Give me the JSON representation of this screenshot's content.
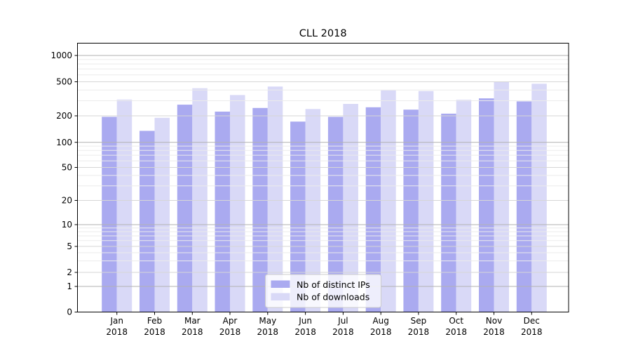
{
  "chart_data": {
    "type": "bar",
    "title": "CLL 2018",
    "categories": [
      "Jan 2018",
      "Feb 2018",
      "Mar 2018",
      "Apr 2018",
      "May 2018",
      "Jun 2018",
      "Jul 2018",
      "Aug 2018",
      "Sep 2018",
      "Oct 2018",
      "Nov 2018",
      "Dec 2018"
    ],
    "series": [
      {
        "name": "Nb of distinct IPs",
        "color": "#aaaaf0",
        "values": [
          195,
          135,
          270,
          224,
          247,
          172,
          195,
          252,
          236,
          212,
          320,
          295
        ]
      },
      {
        "name": "Nb of downloads",
        "color": "#d9d9f7",
        "values": [
          310,
          190,
          420,
          350,
          440,
          240,
          276,
          396,
          390,
          308,
          495,
          474
        ]
      }
    ],
    "xlabel": "",
    "ylabel": "",
    "yticks": [
      1000,
      500,
      200,
      100,
      50,
      20,
      10,
      5,
      2,
      1,
      0
    ],
    "yscale": "log-like (symlog, linear below 1)",
    "ylim": [
      0,
      1400
    ],
    "grid": true,
    "legend_position": "lower center inside plot",
    "colors": {
      "grid_major": "#b2b2b2",
      "grid_mid": "#d6d6d6",
      "grid_minor": "#ebebeb",
      "spine": "#000000",
      "background": "#ffffff",
      "legend_border": "#cccccc",
      "legend_fill": "#ffffff"
    }
  }
}
